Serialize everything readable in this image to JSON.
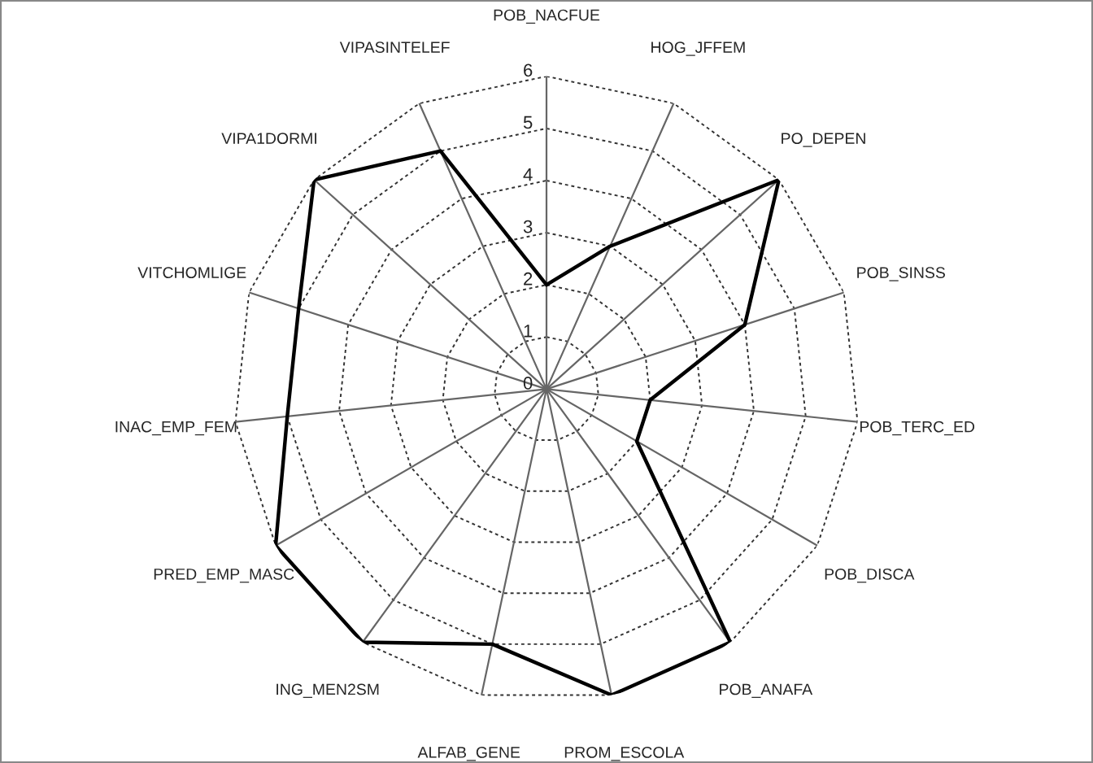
{
  "chart_data": {
    "type": "radar",
    "categories": [
      "POB_NACFUE",
      "HOG_JFFEM",
      "PO_DEPEN",
      "POB_SINSS",
      "POB_TERC_ED",
      "POB_DISCA",
      "POB_ANAFA",
      "PROM_ESCOLA",
      "ALFAB_GENE",
      "ING_MEN2SM",
      "PRED_EMP_MASC",
      "INAC_EMP_FEM",
      "VITCHOMLIGE",
      "VIPA1DORMI",
      "VIPASINTELEF"
    ],
    "series": [
      {
        "color": "#000000",
        "values": [
          2,
          3,
          6,
          4,
          2,
          2,
          6,
          6,
          5,
          6,
          6,
          5,
          5,
          6,
          5
        ]
      }
    ],
    "ylim": [
      0,
      6
    ],
    "yticks": [
      0,
      1,
      2,
      3,
      4,
      5,
      6
    ],
    "grid": true
  }
}
